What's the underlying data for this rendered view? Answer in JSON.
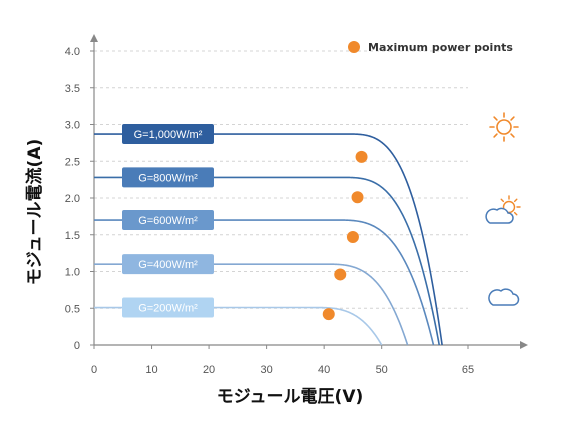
{
  "chart_data": {
    "type": "line",
    "xlabel": "モジュール電圧(V)",
    "ylabel": "モジュール電流(A)",
    "xlim": [
      0,
      65
    ],
    "ylim": [
      0,
      4.0
    ],
    "x_ticks": [
      0,
      10,
      20,
      30,
      40,
      50,
      65
    ],
    "x_tick_labels": [
      "0",
      "10",
      "20",
      "30",
      "40",
      "50",
      "65"
    ],
    "y_ticks": [
      0,
      0.5,
      1.0,
      1.5,
      2.0,
      2.5,
      3.0,
      3.5,
      4.0
    ],
    "y_tick_labels": [
      "0",
      "0.5",
      "1.0",
      "1.5",
      "2.0",
      "2.5",
      "3.0",
      "3.5",
      "4.0"
    ],
    "legend": {
      "label": "Maximum power points",
      "placement": "top-right",
      "marker_color": "#f0892b"
    },
    "series": [
      {
        "label": "G=1,000W/m²",
        "isc": 2.87,
        "voc": 60.5,
        "knee": 44,
        "mpp": [
          46.5,
          2.56
        ],
        "color": "#2e5e9e",
        "label_color": "#2e5e9e"
      },
      {
        "label": "G=800W/m²",
        "isc": 2.28,
        "voc": 60.0,
        "knee": 43,
        "mpp": [
          45.8,
          2.01
        ],
        "color": "#3a6ea8",
        "label_color": "#4a7cb8"
      },
      {
        "label": "G=600W/m²",
        "isc": 1.7,
        "voc": 59.0,
        "knee": 42,
        "mpp": [
          45.0,
          1.47
        ],
        "color": "#5a88bd",
        "label_color": "#6a98cc"
      },
      {
        "label": "G=400W/m²",
        "isc": 1.1,
        "voc": 54.5,
        "knee": 40,
        "mpp": [
          42.8,
          0.96
        ],
        "color": "#84a8d2",
        "label_color": "#8fb6e0"
      },
      {
        "label": "G=200W/m²",
        "isc": 0.51,
        "voc": 50.0,
        "knee": 38,
        "mpp": [
          40.8,
          0.42
        ],
        "color": "#a8c8e8",
        "label_color": "#b0d4f2"
      }
    ],
    "icons": [
      "sun-icon",
      "partly-cloudy-icon",
      "cloud-icon"
    ],
    "icon_color_sun": "#f0892b",
    "icon_color_cloud": "#4a7cb8"
  }
}
